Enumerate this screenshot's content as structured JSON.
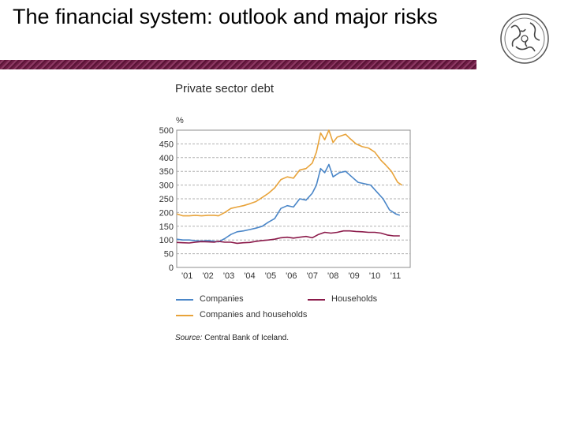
{
  "slide": {
    "title": "The financial system: outlook and major risks"
  },
  "logo": {
    "icon": "central-bank-seal-icon"
  },
  "colors": {
    "title_rule": "#6e1c45",
    "companies": "#4a86c8",
    "households": "#8b1a4a",
    "companies_and_households": "#e8a33a",
    "grid": "#b0b0b0"
  },
  "chart_data": {
    "type": "line",
    "title": "Private sector debt",
    "ylabel": "%",
    "ylim": [
      0,
      500
    ],
    "yticks": [
      0,
      50,
      100,
      150,
      200,
      250,
      300,
      350,
      400,
      450,
      500
    ],
    "xlim": [
      2001,
      2012.2
    ],
    "xtick_labels": [
      "'01",
      "'02",
      "'03",
      "'04",
      "'05",
      "'06",
      "'07",
      "'08",
      "'09",
      "'10",
      "'11"
    ],
    "grid": true,
    "legend_position": "bottom",
    "series": [
      {
        "name": "Companies",
        "x": [
          2001.0,
          2001.3,
          2001.6,
          2001.9,
          2002.2,
          2002.5,
          2002.8,
          2003.0,
          2003.3,
          2003.6,
          2003.9,
          2004.2,
          2004.5,
          2004.8,
          2005.1,
          2005.4,
          2005.7,
          2006.0,
          2006.3,
          2006.6,
          2006.9,
          2007.2,
          2007.5,
          2007.7,
          2007.9,
          2008.1,
          2008.3,
          2008.5,
          2008.8,
          2009.1,
          2009.4,
          2009.7,
          2010.0,
          2010.3,
          2010.6,
          2010.9,
          2011.2,
          2011.5,
          2011.7
        ],
        "values": [
          103,
          100,
          100,
          97,
          96,
          98,
          95,
          93,
          105,
          120,
          130,
          133,
          138,
          143,
          150,
          165,
          178,
          215,
          225,
          220,
          250,
          245,
          270,
          300,
          360,
          345,
          375,
          330,
          345,
          350,
          330,
          310,
          305,
          300,
          275,
          250,
          210,
          195,
          190
        ]
      },
      {
        "name": "Households",
        "x": [
          2001.0,
          2001.3,
          2001.6,
          2001.9,
          2002.2,
          2002.5,
          2002.8,
          2003.0,
          2003.3,
          2003.6,
          2003.9,
          2004.2,
          2004.5,
          2004.8,
          2005.1,
          2005.4,
          2005.7,
          2006.0,
          2006.3,
          2006.6,
          2006.9,
          2007.2,
          2007.5,
          2007.8,
          2008.1,
          2008.4,
          2008.7,
          2009.0,
          2009.3,
          2009.6,
          2009.9,
          2010.2,
          2010.5,
          2010.8,
          2011.1,
          2011.4,
          2011.7
        ],
        "values": [
          91,
          90,
          89,
          92,
          94,
          93,
          92,
          95,
          92,
          92,
          88,
          90,
          91,
          95,
          98,
          100,
          103,
          108,
          110,
          107,
          110,
          113,
          108,
          120,
          128,
          125,
          128,
          133,
          133,
          131,
          130,
          128,
          128,
          125,
          118,
          115,
          115
        ]
      },
      {
        "name": "Companies and households",
        "x": [
          2001.0,
          2001.3,
          2001.6,
          2001.9,
          2002.2,
          2002.5,
          2002.8,
          2003.0,
          2003.3,
          2003.6,
          2003.9,
          2004.2,
          2004.5,
          2004.8,
          2005.1,
          2005.4,
          2005.7,
          2006.0,
          2006.3,
          2006.6,
          2006.9,
          2007.2,
          2007.5,
          2007.7,
          2007.9,
          2008.1,
          2008.3,
          2008.5,
          2008.7,
          2008.9,
          2009.1,
          2009.3,
          2009.6,
          2009.9,
          2010.2,
          2010.5,
          2010.8,
          2011.0,
          2011.3,
          2011.6,
          2011.8
        ],
        "values": [
          195,
          188,
          188,
          190,
          188,
          190,
          190,
          188,
          200,
          215,
          220,
          225,
          232,
          240,
          255,
          270,
          290,
          320,
          330,
          325,
          355,
          360,
          380,
          420,
          490,
          465,
          500,
          455,
          475,
          480,
          485,
          470,
          450,
          440,
          435,
          420,
          390,
          375,
          350,
          310,
          300
        ]
      }
    ],
    "source_prefix": "Source:",
    "source_text": "Central Bank of Iceland."
  }
}
